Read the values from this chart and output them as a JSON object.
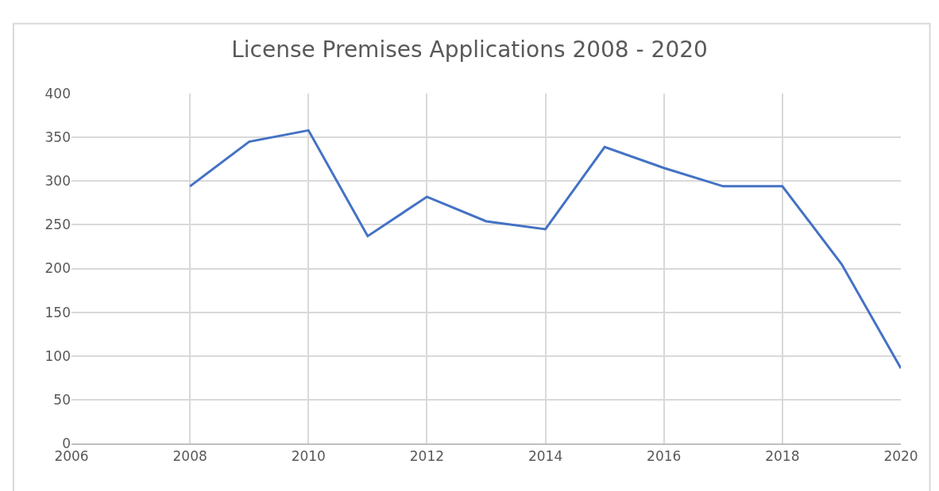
{
  "chart_data": {
    "type": "line",
    "title": "License Premises Applications 2008 - 2020",
    "x": [
      2008,
      2009,
      2010,
      2011,
      2012,
      2013,
      2014,
      2015,
      2016,
      2017,
      2018,
      2019,
      2020
    ],
    "series": [
      {
        "color": "#4472c4",
        "values": [
          294,
          345,
          358,
          237,
          282,
          254,
          245,
          339,
          315,
          294,
          294,
          205,
          86
        ]
      }
    ],
    "xlim": [
      2006,
      2020
    ],
    "xticks": [
      2006,
      2008,
      2010,
      2012,
      2014,
      2016,
      2018,
      2020
    ],
    "ylim": [
      0,
      400
    ],
    "yticks": [
      0,
      50,
      100,
      150,
      200,
      250,
      300,
      350,
      400
    ],
    "grid": true,
    "marker": "none",
    "line_style": "solid"
  }
}
